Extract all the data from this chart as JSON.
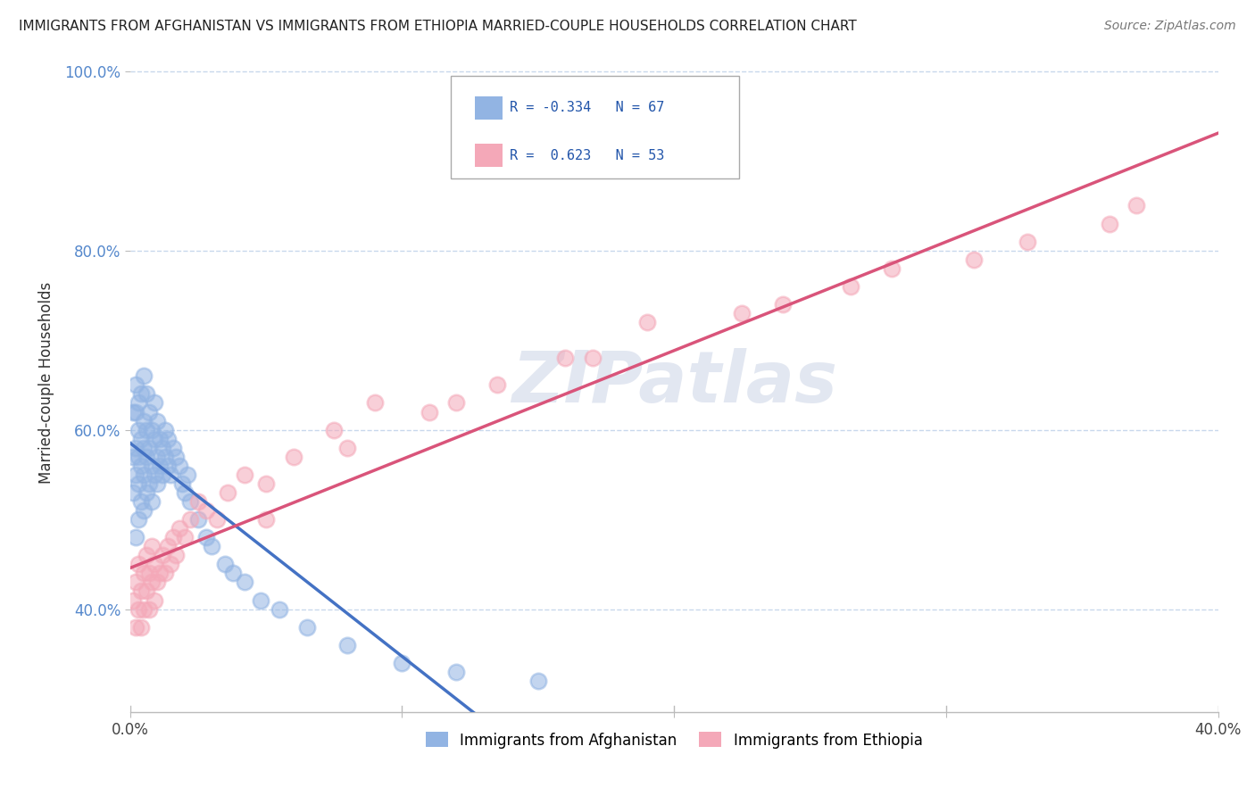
{
  "title": "IMMIGRANTS FROM AFGHANISTAN VS IMMIGRANTS FROM ETHIOPIA MARRIED-COUPLE HOUSEHOLDS CORRELATION CHART",
  "source": "Source: ZipAtlas.com",
  "ylabel": "Married-couple Households",
  "xlim": [
    0.0,
    0.4
  ],
  "ylim": [
    0.285,
    1.02
  ],
  "xticks": [
    0.0,
    0.1,
    0.2,
    0.3,
    0.4
  ],
  "xtick_labels": [
    "0.0%",
    "",
    "",
    "",
    "40.0%"
  ],
  "yticks": [
    0.4,
    0.6,
    0.8,
    1.0
  ],
  "ytick_labels": [
    "40.0%",
    "60.0%",
    "80.0%",
    "100.0%"
  ],
  "afghanistan_color": "#92b4e3",
  "ethiopia_color": "#f4a8b8",
  "afghanistan_line_color": "#4472c4",
  "ethiopia_line_color": "#d9547a",
  "afghanistan_R": -0.334,
  "afghanistan_N": 67,
  "ethiopia_R": 0.623,
  "ethiopia_N": 53,
  "legend_R_color": "#2255aa",
  "watermark": "ZIPatlas",
  "background_color": "#ffffff",
  "grid_color": "#c8d8ec",
  "afghanistan_x": [
    0.001,
    0.001,
    0.001,
    0.002,
    0.002,
    0.002,
    0.002,
    0.002,
    0.003,
    0.003,
    0.003,
    0.003,
    0.003,
    0.004,
    0.004,
    0.004,
    0.004,
    0.005,
    0.005,
    0.005,
    0.005,
    0.005,
    0.006,
    0.006,
    0.006,
    0.006,
    0.007,
    0.007,
    0.007,
    0.008,
    0.008,
    0.008,
    0.009,
    0.009,
    0.009,
    0.01,
    0.01,
    0.01,
    0.011,
    0.011,
    0.012,
    0.012,
    0.013,
    0.013,
    0.014,
    0.014,
    0.015,
    0.016,
    0.017,
    0.018,
    0.019,
    0.02,
    0.021,
    0.022,
    0.025,
    0.028,
    0.03,
    0.035,
    0.038,
    0.042,
    0.048,
    0.055,
    0.065,
    0.08,
    0.1,
    0.12,
    0.15
  ],
  "afghanistan_y": [
    0.53,
    0.57,
    0.62,
    0.48,
    0.55,
    0.58,
    0.62,
    0.65,
    0.5,
    0.54,
    0.57,
    0.6,
    0.63,
    0.52,
    0.56,
    0.59,
    0.64,
    0.51,
    0.55,
    0.58,
    0.61,
    0.66,
    0.53,
    0.57,
    0.6,
    0.64,
    0.54,
    0.58,
    0.62,
    0.52,
    0.56,
    0.6,
    0.55,
    0.59,
    0.63,
    0.54,
    0.57,
    0.61,
    0.56,
    0.59,
    0.55,
    0.58,
    0.57,
    0.6,
    0.56,
    0.59,
    0.55,
    0.58,
    0.57,
    0.56,
    0.54,
    0.53,
    0.55,
    0.52,
    0.5,
    0.48,
    0.47,
    0.45,
    0.44,
    0.43,
    0.41,
    0.4,
    0.38,
    0.36,
    0.34,
    0.33,
    0.32
  ],
  "ethiopia_x": [
    0.001,
    0.002,
    0.002,
    0.003,
    0.003,
    0.004,
    0.004,
    0.005,
    0.005,
    0.006,
    0.006,
    0.007,
    0.007,
    0.008,
    0.008,
    0.009,
    0.009,
    0.01,
    0.011,
    0.012,
    0.013,
    0.014,
    0.015,
    0.016,
    0.017,
    0.018,
    0.02,
    0.022,
    0.025,
    0.028,
    0.032,
    0.036,
    0.042,
    0.05,
    0.06,
    0.075,
    0.09,
    0.11,
    0.135,
    0.16,
    0.19,
    0.225,
    0.265,
    0.31,
    0.36,
    0.05,
    0.08,
    0.12,
    0.17,
    0.24,
    0.28,
    0.33,
    0.37
  ],
  "ethiopia_y": [
    0.41,
    0.38,
    0.43,
    0.4,
    0.45,
    0.38,
    0.42,
    0.4,
    0.44,
    0.42,
    0.46,
    0.4,
    0.44,
    0.43,
    0.47,
    0.41,
    0.45,
    0.43,
    0.44,
    0.46,
    0.44,
    0.47,
    0.45,
    0.48,
    0.46,
    0.49,
    0.48,
    0.5,
    0.52,
    0.51,
    0.5,
    0.53,
    0.55,
    0.54,
    0.57,
    0.6,
    0.63,
    0.62,
    0.65,
    0.68,
    0.72,
    0.73,
    0.76,
    0.79,
    0.83,
    0.5,
    0.58,
    0.63,
    0.68,
    0.74,
    0.78,
    0.81,
    0.85
  ]
}
